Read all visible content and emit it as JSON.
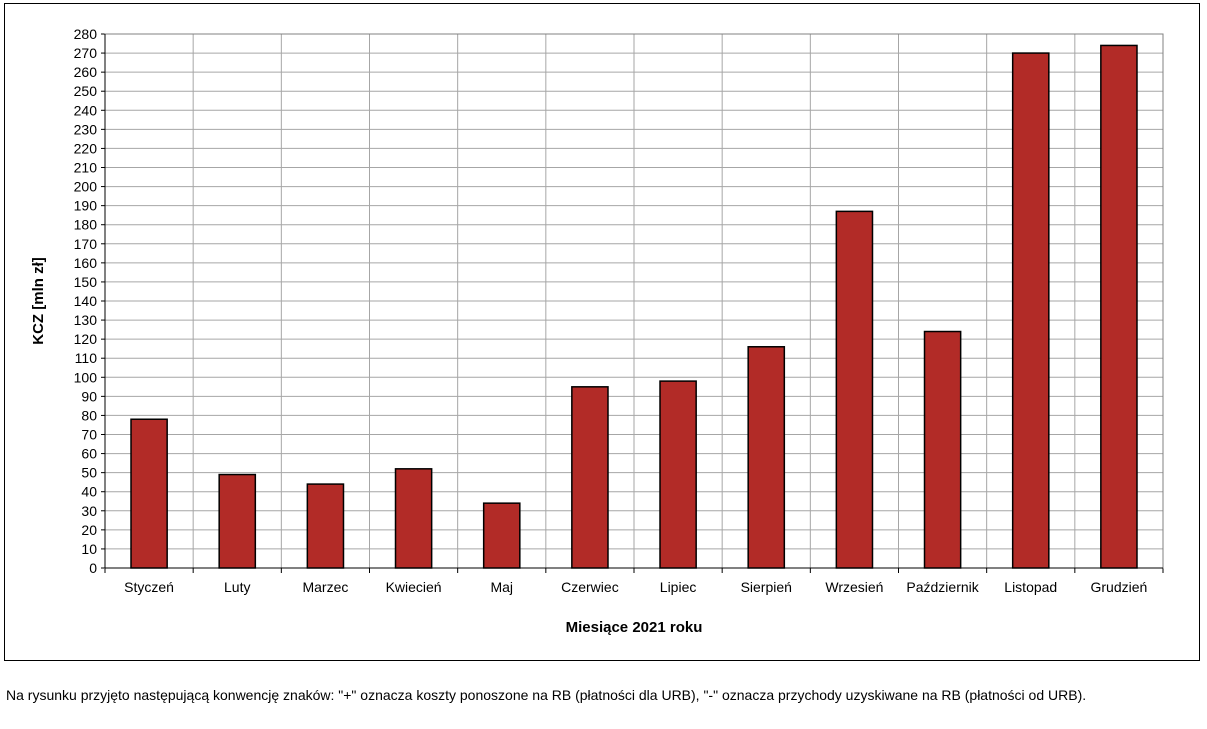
{
  "chart_data": {
    "type": "bar",
    "categories": [
      "Styczeń",
      "Luty",
      "Marzec",
      "Kwiecień",
      "Maj",
      "Czerwiec",
      "Lipiec",
      "Sierpień",
      "Wrzesień",
      "Październik",
      "Listopad",
      "Grudzień"
    ],
    "values": [
      78,
      49,
      44,
      52,
      34,
      95,
      98,
      116,
      187,
      124,
      270,
      274
    ],
    "xlabel": "Miesiące  2021 roku",
    "ylabel": "KCZ [mln zł]",
    "ylim": [
      0,
      280
    ],
    "ytick_step": 10,
    "grid": true,
    "legend": "none",
    "colors": {
      "bar": "#b22b27",
      "bar_edge": "#000000",
      "grid": "#a6a6a6",
      "axis": "#000000"
    }
  },
  "footnote": "Na rysunku przyjęto następującą konwencję znaków: \"+\" oznacza koszty ponoszone na RB (płatności dla URB), \"-\" oznacza przychody uzyskiwane na RB (płatności od URB)."
}
